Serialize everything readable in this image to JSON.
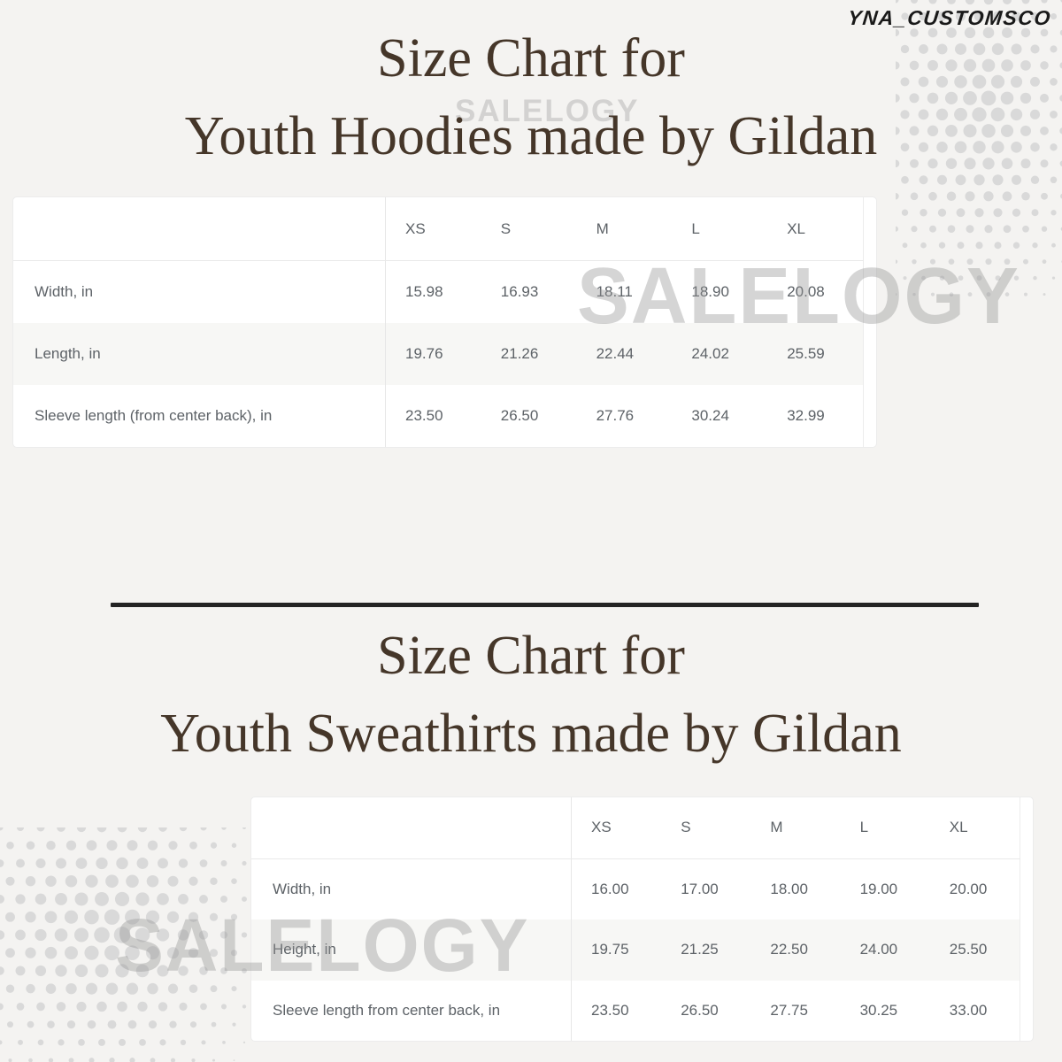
{
  "page": {
    "brand": "YNA_CUSTOMSCO",
    "watermark": "SALELOGY",
    "background_color": "#f4f3f1",
    "title_color": "#453629",
    "divider_color": "#232323",
    "halftone_color": "#d9d9d9",
    "table_text_color": "#5d6267",
    "stripe_color": "#f7f7f5"
  },
  "section_hoodies": {
    "title_line1": "Size Chart for",
    "title_line2": "Youth Hoodies made by Gildan",
    "table": {
      "columns": [
        "XS",
        "S",
        "M",
        "L",
        "XL"
      ],
      "rows": [
        {
          "label": "Width, in",
          "values": [
            "15.98",
            "16.93",
            "18.11",
            "18.90",
            "20.08"
          ]
        },
        {
          "label": "Length, in",
          "values": [
            "19.76",
            "21.26",
            "22.44",
            "24.02",
            "25.59"
          ]
        },
        {
          "label": "Sleeve length (from center back), in",
          "values": [
            "23.50",
            "26.50",
            "27.76",
            "30.24",
            "32.99"
          ]
        }
      ]
    }
  },
  "section_sweatshirts": {
    "title_line1": "Size Chart for",
    "title_line2": "Youth Sweathirts made by Gildan",
    "table": {
      "columns": [
        "XS",
        "S",
        "M",
        "L",
        "XL"
      ],
      "rows": [
        {
          "label": "Width, in",
          "values": [
            "16.00",
            "17.00",
            "18.00",
            "19.00",
            "20.00"
          ]
        },
        {
          "label": "Height, in",
          "values": [
            "19.75",
            "21.25",
            "22.50",
            "24.00",
            "25.50"
          ]
        },
        {
          "label": "Sleeve length from center back, in",
          "values": [
            "23.50",
            "26.50",
            "27.75",
            "30.25",
            "33.00"
          ]
        }
      ]
    }
  }
}
